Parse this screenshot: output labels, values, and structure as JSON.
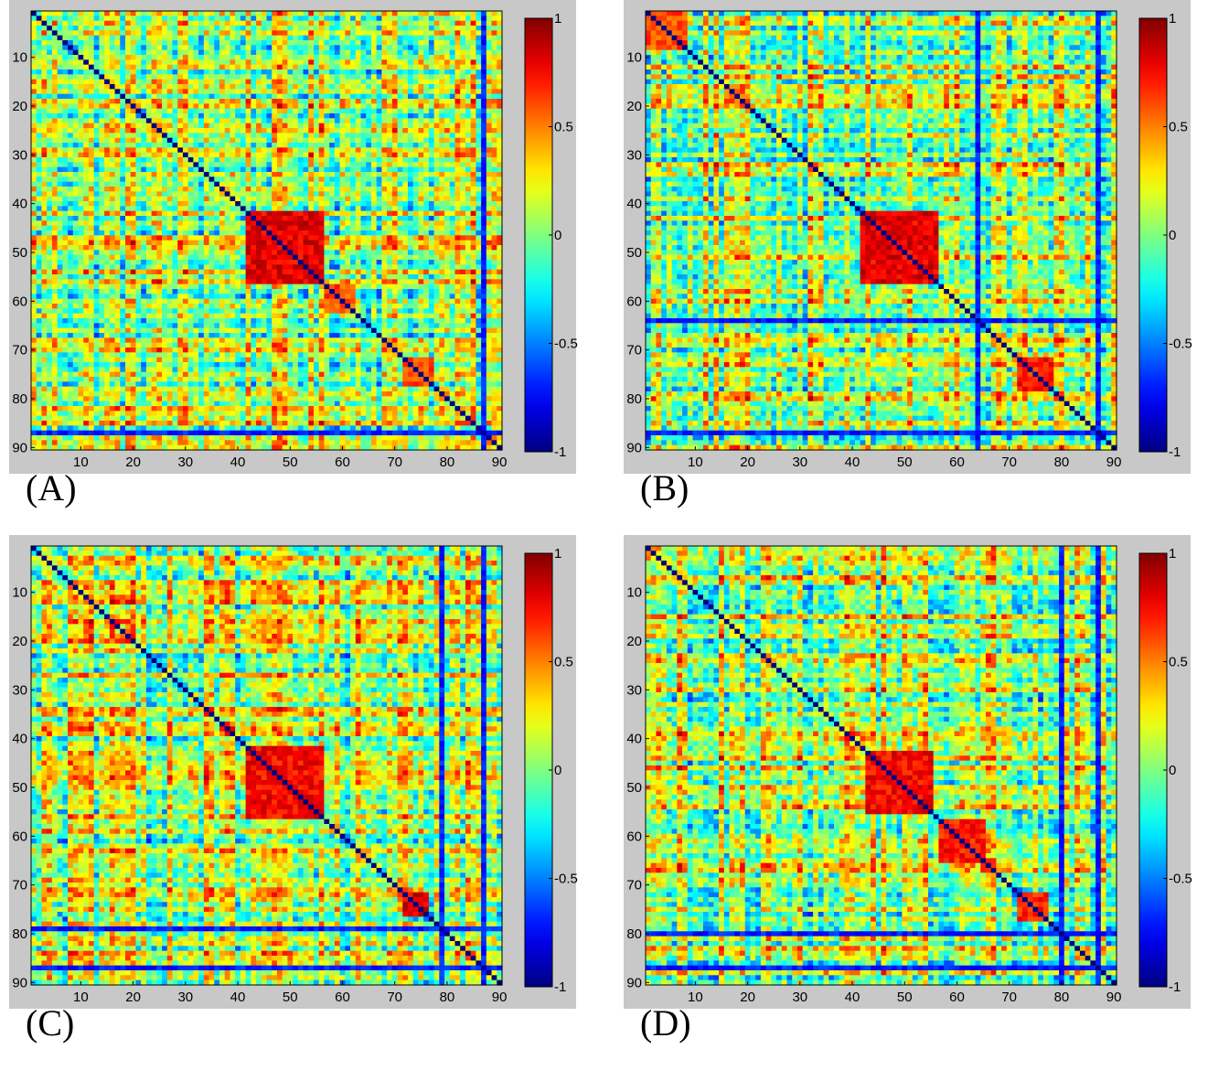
{
  "chart_data": [
    {
      "type": "heatmap",
      "panel_label": "(A)",
      "size": 90,
      "x_ticks": [
        "10",
        "20",
        "30",
        "40",
        "50",
        "60",
        "70",
        "80",
        "90"
      ],
      "y_ticks": [
        "10",
        "20",
        "30",
        "40",
        "50",
        "60",
        "70",
        "80",
        "90"
      ],
      "clim": [
        -1,
        1
      ],
      "colorbar_ticks": [
        "1",
        "0.5",
        "0",
        "-0.5",
        "-1"
      ],
      "colormap": "jet",
      "blocks": [
        {
          "range": [
            42,
            56
          ],
          "value": 0.8
        },
        {
          "range": [
            57,
            62
          ],
          "value": 0.6
        },
        {
          "range": [
            72,
            77
          ],
          "value": 0.6
        }
      ],
      "negative_lines": [
        87
      ]
    },
    {
      "type": "heatmap",
      "panel_label": "(B)",
      "size": 90,
      "x_ticks": [
        "10",
        "20",
        "30",
        "40",
        "50",
        "60",
        "70",
        "80",
        "90"
      ],
      "y_ticks": [
        "10",
        "20",
        "30",
        "40",
        "50",
        "60",
        "70",
        "80",
        "90"
      ],
      "clim": [
        -1,
        1
      ],
      "colorbar_ticks": [
        "1",
        "0.5",
        "0",
        "-0.5",
        "-1"
      ],
      "colormap": "jet",
      "blocks": [
        {
          "range": [
            42,
            56
          ],
          "value": 0.8
        },
        {
          "range": [
            72,
            78
          ],
          "value": 0.7
        },
        {
          "range": [
            1,
            8
          ],
          "value": 0.6
        }
      ],
      "negative_lines": [
        64,
        87
      ]
    },
    {
      "type": "heatmap",
      "panel_label": "(C)",
      "size": 90,
      "x_ticks": [
        "10",
        "20",
        "30",
        "40",
        "50",
        "60",
        "70",
        "80",
        "90"
      ],
      "y_ticks": [
        "10",
        "20",
        "30",
        "40",
        "50",
        "60",
        "70",
        "80",
        "90"
      ],
      "clim": [
        -1,
        1
      ],
      "colorbar_ticks": [
        "1",
        "0.5",
        "0",
        "-0.5",
        "-1"
      ],
      "colormap": "jet",
      "blocks": [
        {
          "range": [
            42,
            56
          ],
          "value": 0.75
        },
        {
          "range": [
            72,
            76
          ],
          "value": 0.8
        }
      ],
      "negative_lines": [
        79,
        87
      ]
    },
    {
      "type": "heatmap",
      "panel_label": "(D)",
      "size": 90,
      "x_ticks": [
        "10",
        "20",
        "30",
        "40",
        "50",
        "60",
        "70",
        "80",
        "90"
      ],
      "y_ticks": [
        "10",
        "20",
        "30",
        "40",
        "50",
        "60",
        "70",
        "80",
        "90"
      ],
      "clim": [
        -1,
        1
      ],
      "colorbar_ticks": [
        "1",
        "0.5",
        "0",
        "-0.5",
        "-1"
      ],
      "colormap": "jet",
      "blocks": [
        {
          "range": [
            43,
            55
          ],
          "value": 0.75
        },
        {
          "range": [
            57,
            65
          ],
          "value": 0.7
        },
        {
          "range": [
            72,
            77
          ],
          "value": 0.7
        }
      ],
      "negative_lines": [
        80,
        87
      ]
    }
  ]
}
